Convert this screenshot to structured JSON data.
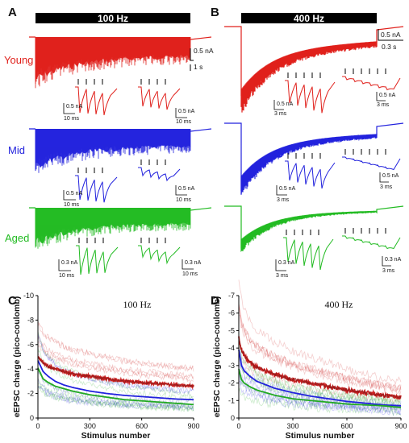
{
  "panels": {
    "A": "A",
    "B": "B",
    "C": "C",
    "D": "D"
  },
  "stim_bars": {
    "A": "100 Hz",
    "B": "400 Hz"
  },
  "groups": [
    {
      "key": "young",
      "label": "Young",
      "color": "#e0201b"
    },
    {
      "key": "mid",
      "label": "Mid",
      "color": "#2222dd"
    },
    {
      "key": "aged",
      "label": "Aged",
      "color": "#22bb22"
    }
  ],
  "scale_bars": {
    "A_main_amp": "0.5 nA",
    "A_main_time": "1 s",
    "B_main_amp": "0.5 nA",
    "B_main_time": "0.3 s",
    "inset_young_amp": "0.5 nA",
    "inset_mid_amp": "0.5 nA",
    "inset_aged_amp": "0.3 nA",
    "inset_time_A": "10 ms",
    "inset_time_B": "3 ms"
  },
  "chart_data": [
    {
      "panel": "C",
      "type": "line",
      "title": "100 Hz",
      "xlabel": "Stimulus number",
      "ylabel": "eEPSC charge (pico-coulomb)",
      "xlim": [
        0,
        900
      ],
      "ylim": [
        0,
        -10
      ],
      "xticks": [
        0,
        300,
        600,
        900
      ],
      "yticks": [
        0,
        -2,
        -4,
        -6,
        -8,
        -10
      ],
      "x": [
        0,
        30,
        60,
        100,
        150,
        200,
        300,
        400,
        500,
        600,
        700,
        800,
        900
      ],
      "series": [
        {
          "key": "young",
          "color": "#cc2222",
          "values": [
            -5.0,
            -4.5,
            -4.2,
            -4.0,
            -3.8,
            -3.6,
            -3.4,
            -3.2,
            -3.0,
            -2.9,
            -2.8,
            -2.7,
            -2.6
          ]
        },
        {
          "key": "mid",
          "color": "#2222dd",
          "values": [
            -4.7,
            -3.8,
            -3.4,
            -3.0,
            -2.7,
            -2.5,
            -2.2,
            -2.0,
            -1.85,
            -1.75,
            -1.65,
            -1.55,
            -1.5
          ]
        },
        {
          "key": "aged",
          "color": "#22aa22",
          "values": [
            -4.1,
            -3.2,
            -2.9,
            -2.6,
            -2.4,
            -2.2,
            -1.9,
            -1.7,
            -1.5,
            -1.4,
            -1.3,
            -1.2,
            -1.1
          ]
        }
      ]
    },
    {
      "panel": "D",
      "type": "line",
      "title": "400 Hz",
      "xlabel": "Stimulus number",
      "ylabel": "eEPSC charge (pico-coulomb)",
      "xlim": [
        0,
        900
      ],
      "ylim": [
        0,
        -7
      ],
      "xticks": [
        0,
        300,
        600,
        900
      ],
      "yticks": [
        0,
        -1,
        -2,
        -3,
        -4,
        -5,
        -6,
        -7
      ],
      "x": [
        0,
        15,
        30,
        60,
        100,
        150,
        200,
        300,
        400,
        500,
        600,
        700,
        800,
        900
      ],
      "series": [
        {
          "key": "young",
          "color": "#cc2222",
          "values": [
            -4.6,
            -3.9,
            -3.6,
            -3.2,
            -2.9,
            -2.7,
            -2.5,
            -2.2,
            -2.0,
            -1.8,
            -1.6,
            -1.45,
            -1.3,
            -1.2
          ]
        },
        {
          "key": "mid",
          "color": "#2222dd",
          "values": [
            -3.9,
            -3.0,
            -2.7,
            -2.4,
            -2.1,
            -1.9,
            -1.7,
            -1.45,
            -1.25,
            -1.1,
            -0.95,
            -0.85,
            -0.75,
            -0.7
          ]
        },
        {
          "key": "aged",
          "color": "#22aa22",
          "values": [
            -2.8,
            -2.2,
            -2.0,
            -1.8,
            -1.6,
            -1.45,
            -1.3,
            -1.1,
            -1.0,
            -0.9,
            -0.8,
            -0.75,
            -0.7,
            -0.6
          ]
        }
      ]
    }
  ]
}
